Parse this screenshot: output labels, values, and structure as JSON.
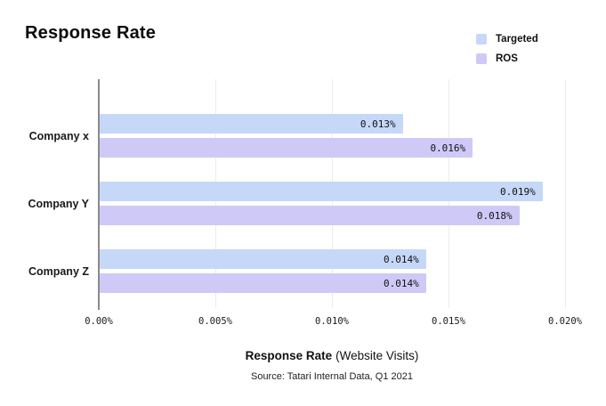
{
  "title": "Response Rate",
  "legend": {
    "items": [
      {
        "label": "Targeted",
        "color": "#c6d8f8"
      },
      {
        "label": "ROS",
        "color": "#cfc9f7"
      }
    ]
  },
  "chart_data": {
    "type": "bar",
    "orientation": "horizontal",
    "title": "Response Rate",
    "categories": [
      "Company x",
      "Company Y",
      "Company Z"
    ],
    "series": [
      {
        "name": "Targeted",
        "color": "#c6d8f8",
        "values": [
          0.013,
          0.019,
          0.014
        ],
        "value_labels": [
          "0.013%",
          "0.019%",
          "0.014%"
        ]
      },
      {
        "name": "ROS",
        "color": "#cfc9f7",
        "values": [
          0.016,
          0.018,
          0.014
        ],
        "value_labels": [
          "0.016%",
          "0.018%",
          "0.014%"
        ]
      }
    ],
    "xlim": [
      0,
      0.02
    ],
    "x_ticks": [
      {
        "value": 0,
        "label": "0.00%"
      },
      {
        "value": 0.005,
        "label": "0.005%"
      },
      {
        "value": 0.01,
        "label": "0.010%"
      },
      {
        "value": 0.015,
        "label": "0.015%"
      },
      {
        "value": 0.02,
        "label": "0.020%"
      }
    ],
    "grid": "vertical",
    "legend_position": "top-right",
    "xlabel": {
      "bold": "Response Rate",
      "rest": "(Website Visits)"
    },
    "source": "Source: Tatari Internal Data, Q1 2021"
  }
}
